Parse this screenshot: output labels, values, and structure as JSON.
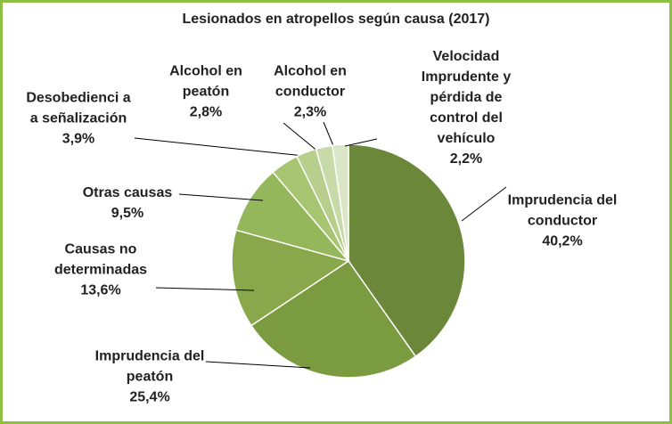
{
  "chart_data": {
    "type": "pie",
    "title": "Lesionados en atropellos según causa (2017)",
    "categories": [
      "Imprudencia del conductor",
      "Imprudencia del peatón",
      "Causas no determinadas",
      "Otras causas",
      "Desobedienci a a señalización",
      "Alcohol en peatón",
      "Alcohol en conductor",
      "Velocidad Imprudente y pérdida de control del vehículo"
    ],
    "values": [
      40.2,
      25.4,
      13.6,
      9.5,
      3.9,
      2.8,
      2.3,
      2.2
    ],
    "value_labels": [
      "40,2%",
      "25,4%",
      "13,6%",
      "9,5%",
      "3,9%",
      "2,8%",
      "2,3%",
      "2,2%"
    ],
    "colors": [
      "#6b873a",
      "#7b9b41",
      "#88a84b",
      "#95b75b",
      "#a7c471",
      "#b7ce8c",
      "#c7daa8",
      "#dae6c6"
    ]
  }
}
